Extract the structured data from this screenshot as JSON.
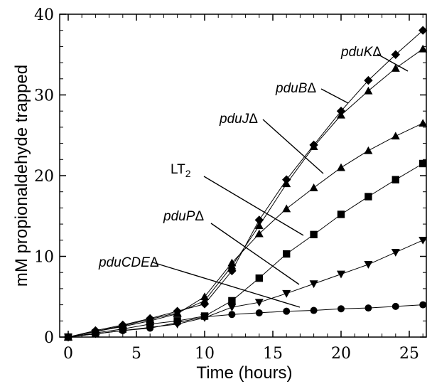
{
  "chart_data": {
    "type": "line",
    "title": "",
    "xlabel": "Time (hours)",
    "ylabel": "mM propionaldehyde trapped",
    "xlim": [
      -0.5,
      26.5
    ],
    "ylim": [
      0,
      40
    ],
    "xticks": [
      0,
      5,
      10,
      15,
      20,
      25
    ],
    "yticks": [
      0,
      10,
      20,
      30,
      40
    ],
    "grid": false,
    "legend": "none (series identified by in-plot leader-line labels)",
    "series": [
      {
        "name": "pduKΔ",
        "marker": "diamond",
        "x": [
          0,
          2,
          4,
          6,
          8,
          10,
          12,
          14,
          16,
          18,
          20,
          22,
          24,
          26
        ],
        "y": [
          0,
          0.8,
          1.5,
          2.3,
          3.2,
          4.1,
          8.2,
          14.5,
          19.5,
          23.8,
          28.0,
          31.8,
          35.0,
          38.0
        ]
      },
      {
        "name": "pduBΔ",
        "marker": "triangle-up",
        "x": [
          0,
          2,
          4,
          6,
          8,
          10,
          12,
          14,
          16,
          18,
          20,
          22,
          24,
          26
        ],
        "y": [
          0,
          0.7,
          1.4,
          2.2,
          3.0,
          4.5,
          8.8,
          13.8,
          19.0,
          23.6,
          27.5,
          30.5,
          33.3,
          35.7
        ]
      },
      {
        "name": "pduJΔ",
        "marker": "triangle-up",
        "x": [
          0,
          2,
          4,
          6,
          8,
          10,
          12,
          14,
          16,
          18,
          20,
          22,
          24,
          26
        ],
        "y": [
          0,
          0.7,
          1.3,
          2.0,
          2.9,
          5.0,
          9.2,
          12.8,
          15.9,
          18.5,
          21.0,
          23.1,
          24.9,
          26.5
        ]
      },
      {
        "name": "LT2",
        "marker": "square",
        "x": [
          0,
          2,
          4,
          6,
          8,
          10,
          12,
          14,
          16,
          18,
          20,
          22,
          24,
          26
        ],
        "y": [
          0,
          0.5,
          1.0,
          1.6,
          2.0,
          2.6,
          4.5,
          7.3,
          10.3,
          12.7,
          15.2,
          17.4,
          19.5,
          21.5
        ]
      },
      {
        "name": "pduPΔ",
        "marker": "triangle-down",
        "x": [
          0,
          2,
          4,
          6,
          8,
          10,
          12,
          14,
          16,
          18,
          20,
          22,
          24,
          26
        ],
        "y": [
          0,
          0.4,
          0.8,
          1.2,
          1.6,
          2.4,
          3.7,
          4.3,
          5.4,
          6.6,
          7.8,
          9.0,
          10.5,
          12.0
        ]
      },
      {
        "name": "pduCDEΔ",
        "marker": "circle",
        "x": [
          0,
          2,
          4,
          6,
          8,
          10,
          12,
          14,
          16,
          18,
          20,
          22,
          24,
          26
        ],
        "y": [
          0,
          0.4,
          0.8,
          1.1,
          1.8,
          2.5,
          2.8,
          3.0,
          3.2,
          3.3,
          3.5,
          3.6,
          3.8,
          4.0
        ]
      }
    ],
    "annotations": [
      {
        "label": "pdu",
        "suffix": "K",
        "delta": "Δ",
        "italic": true
      },
      {
        "label": "pdu",
        "suffix": "B",
        "delta": "Δ",
        "italic": true
      },
      {
        "label": "pdu",
        "suffix": "J",
        "delta": "Δ",
        "italic": true
      },
      {
        "label": "LT",
        "sub": "2",
        "italic": false
      },
      {
        "label": "pdu",
        "suffix": "P",
        "delta": "Δ",
        "italic": true
      },
      {
        "label": "pdu",
        "suffix": "CDE",
        "delta": "Δ",
        "italic": true
      }
    ]
  }
}
